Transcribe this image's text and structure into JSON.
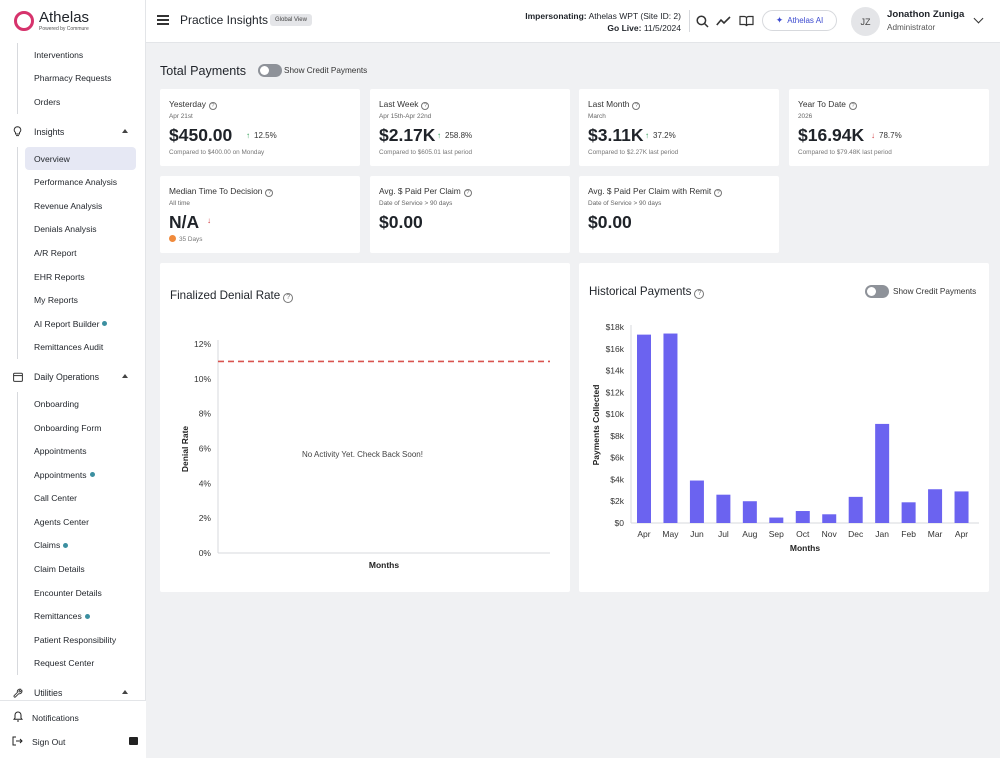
{
  "brand": {
    "name": "Athelas",
    "tagline": "Powered by Commure"
  },
  "sidebar": {
    "top_items": [
      {
        "label": "Interventions"
      },
      {
        "label": "Pharmacy Requests"
      },
      {
        "label": "Orders"
      }
    ],
    "insights": {
      "label": "Insights",
      "items": [
        {
          "label": "Overview",
          "active": true
        },
        {
          "label": "Performance Analysis"
        },
        {
          "label": "Revenue Analysis"
        },
        {
          "label": "Denials Analysis"
        },
        {
          "label": "A/R Report"
        },
        {
          "label": "EHR Reports"
        },
        {
          "label": "My Reports"
        },
        {
          "label": "AI Report Builder",
          "dot": true
        },
        {
          "label": "Remittances Audit"
        }
      ]
    },
    "daily_ops": {
      "label": "Daily Operations",
      "items": [
        {
          "label": "Onboarding"
        },
        {
          "label": "Onboarding Form"
        },
        {
          "label": "Appointments"
        },
        {
          "label": "Appointments",
          "dot": true
        },
        {
          "label": "Call Center"
        },
        {
          "label": "Agents Center"
        },
        {
          "label": "Claims",
          "dot": true
        },
        {
          "label": "Claim Details"
        },
        {
          "label": "Encounter Details"
        },
        {
          "label": "Remittances",
          "dot": true
        },
        {
          "label": "Patient Responsibility"
        },
        {
          "label": "Request Center"
        }
      ]
    },
    "utilities": {
      "label": "Utilities"
    },
    "notifications": "Notifications",
    "sign_out": "Sign Out"
  },
  "header": {
    "title": "Practice Insights",
    "badge": "Global View",
    "impersonating_label": "Impersonating:",
    "impersonating_value": "Athelas WPT (Site ID: 2)",
    "golive_label": "Go Live:",
    "golive_value": "11/5/2024",
    "ai_button": "Athelas AI",
    "avatar_initials": "JZ",
    "user_name": "Jonathon Zuniga",
    "user_role": "Administrator"
  },
  "total_payments": {
    "title": "Total Payments",
    "toggle_label": "Show Credit Payments",
    "cards": [
      {
        "title": "Yesterday",
        "sub": "Apr 21st",
        "value": "$450.00",
        "direction": "up",
        "change": "12.5%",
        "compare": "Compared to $400.00 on Monday"
      },
      {
        "title": "Last Week",
        "sub": "Apr 15th-Apr 22nd",
        "value": "$2.17K",
        "direction": "up",
        "change": "258.8%",
        "compare": "Compared to $605.01 last period"
      },
      {
        "title": "Last Month",
        "sub": "March",
        "value": "$3.11K",
        "direction": "up",
        "change": "37.2%",
        "compare": "Compared to $2.27K last period"
      },
      {
        "title": "Year To Date",
        "sub": "2026",
        "value": "$16.94K",
        "direction": "down",
        "change": "78.7%",
        "compare": "Compared to $79.48K last period"
      }
    ],
    "cards2": [
      {
        "title": "Median Time To Decision",
        "sub": "All time",
        "value": "N/A",
        "direction": "down",
        "note": "35 Days"
      },
      {
        "title": "Avg. $ Paid Per Claim",
        "sub": "Date of Service > 90 days",
        "value": "$0.00"
      },
      {
        "title": "Avg. $ Paid Per Claim with Remit",
        "sub": "Date of Service > 90 days",
        "value": "$0.00"
      }
    ]
  },
  "denial_chart": {
    "title": "Finalized Denial Rate",
    "empty_message": "No Activity Yet. Check Back Soon!",
    "xlabel": "Months",
    "ylabel": "Denial Rate",
    "yticks": [
      "12%",
      "10%",
      "8%",
      "6%",
      "4%",
      "2%",
      "0%"
    ]
  },
  "payments_chart": {
    "title": "Historical Payments",
    "toggle_label": "Show Credit Payments"
  },
  "chart_data": [
    {
      "type": "line",
      "title": "Finalized Denial Rate",
      "xlabel": "Months",
      "ylabel": "Denial Rate",
      "ylim": [
        0,
        12
      ],
      "reference_line": 11,
      "series": [],
      "color": "#d9534f"
    },
    {
      "type": "bar",
      "title": "Historical Payments",
      "xlabel": "Months",
      "ylabel": "Payments Collected",
      "ylim": [
        0,
        18000
      ],
      "yticks": [
        "$0",
        "$2k",
        "$4k",
        "$6k",
        "$8k",
        "$10k",
        "$12k",
        "$14k",
        "$16k",
        "$18k"
      ],
      "categories": [
        "Apr",
        "May",
        "Jun",
        "Jul",
        "Aug",
        "Sep",
        "Oct",
        "Nov",
        "Dec",
        "Jan",
        "Feb",
        "Mar",
        "Apr"
      ],
      "values": [
        17300,
        17400,
        3900,
        2600,
        2000,
        500,
        1100,
        800,
        2400,
        9100,
        1900,
        3100,
        2900
      ],
      "color": "#6b63f0"
    }
  ]
}
